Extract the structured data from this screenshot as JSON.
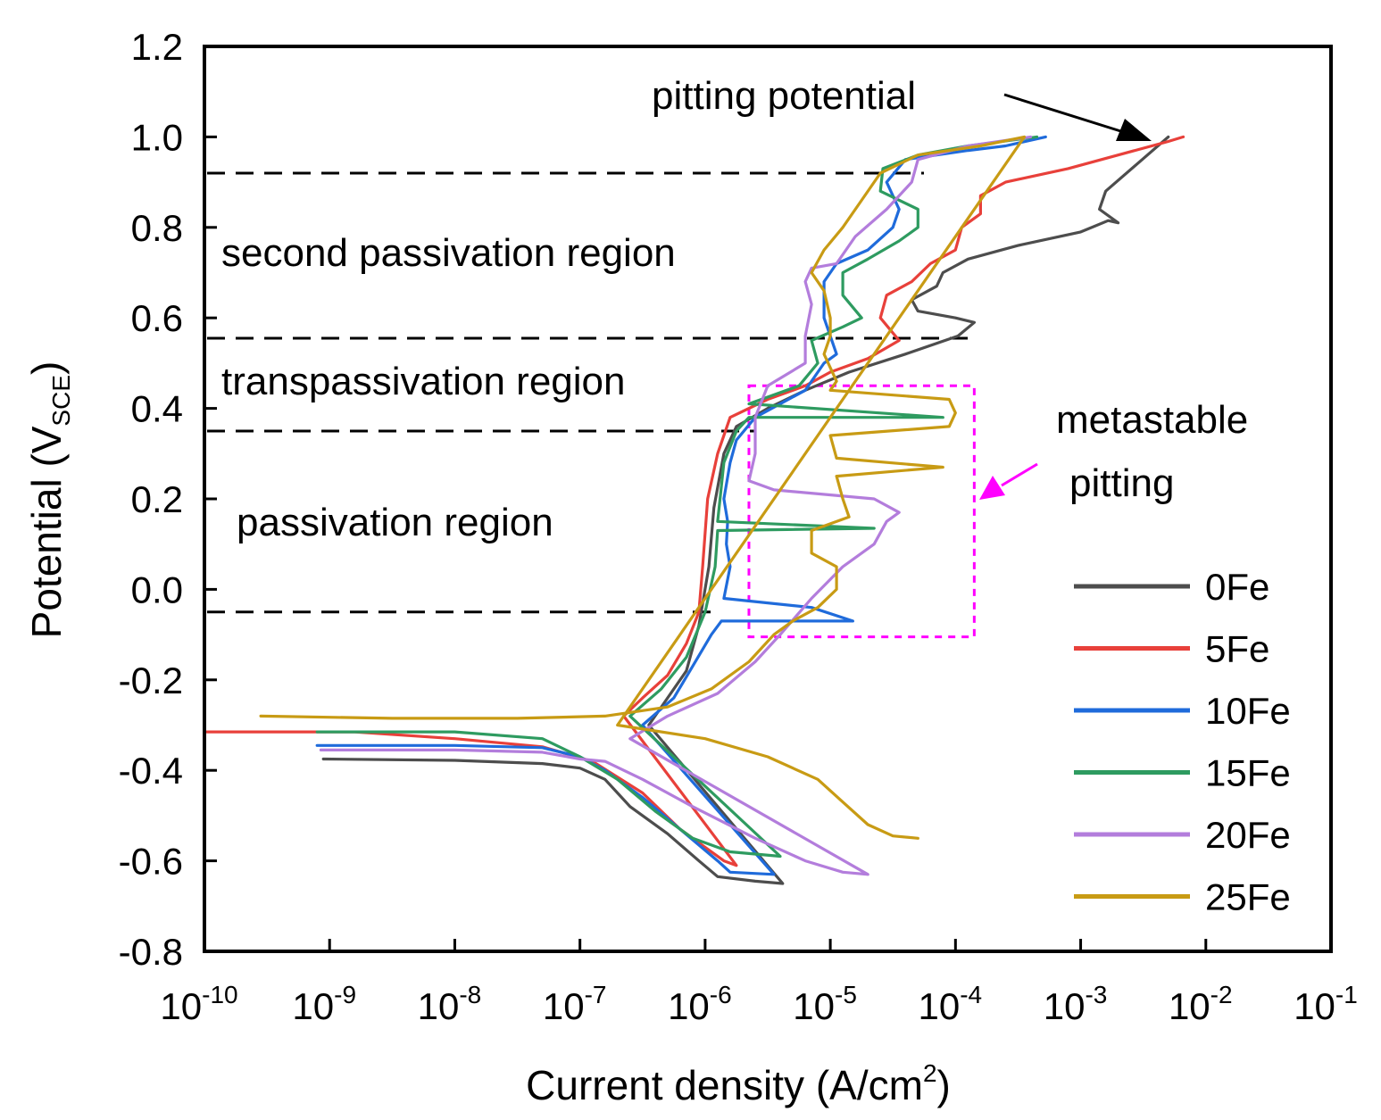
{
  "chart_data": {
    "type": "line",
    "title": "",
    "xlabel": {
      "main": "Current density (A/cm",
      "sup": "2",
      "tail": ")"
    },
    "ylabel": {
      "main": "Potential (V",
      "sub": "SCE",
      "tail": ")"
    },
    "xscale": "log",
    "xlim": [
      -10,
      -1
    ],
    "ylim": [
      -0.8,
      1.2
    ],
    "x_ticks": [
      {
        "base": "10",
        "exp": "-10",
        "value": -10
      },
      {
        "base": "10",
        "exp": "-9",
        "value": -9
      },
      {
        "base": "10",
        "exp": "-8",
        "value": -8
      },
      {
        "base": "10",
        "exp": "-7",
        "value": -7
      },
      {
        "base": "10",
        "exp": "-6",
        "value": -6
      },
      {
        "base": "10",
        "exp": "-5",
        "value": -5
      },
      {
        "base": "10",
        "exp": "-4",
        "value": -4
      },
      {
        "base": "10",
        "exp": "-3",
        "value": -3
      },
      {
        "base": "10",
        "exp": "-2",
        "value": -2
      },
      {
        "base": "10",
        "exp": "-1",
        "value": -1
      }
    ],
    "y_ticks": [
      {
        "label": "1.2",
        "value": 1.2
      },
      {
        "label": "1.0",
        "value": 1.0
      },
      {
        "label": "0.8",
        "value": 0.8
      },
      {
        "label": "0.6",
        "value": 0.6
      },
      {
        "label": "0.4",
        "value": 0.4
      },
      {
        "label": "0.2",
        "value": 0.2
      },
      {
        "label": "0.0",
        "value": 0.0
      },
      {
        "label": "-0.2",
        "value": -0.2
      },
      {
        "label": "-0.4",
        "value": -0.4
      },
      {
        "label": "-0.6",
        "value": -0.6
      },
      {
        "label": "-0.8",
        "value": -0.8
      }
    ],
    "legend_position": "bottom-right",
    "series": [
      {
        "name": "0Fe",
        "color": "#4d4d4d",
        "points": [
          [
            -9.05,
            -0.375
          ],
          [
            -8.0,
            -0.378
          ],
          [
            -7.3,
            -0.385
          ],
          [
            -7.0,
            -0.395
          ],
          [
            -6.8,
            -0.42
          ],
          [
            -6.6,
            -0.48
          ],
          [
            -6.3,
            -0.54
          ],
          [
            -6.05,
            -0.6
          ],
          [
            -5.9,
            -0.635
          ],
          [
            -5.6,
            -0.645
          ],
          [
            -5.38,
            -0.65
          ],
          [
            -6.45,
            -0.3
          ],
          [
            -6.3,
            -0.24
          ],
          [
            -6.15,
            -0.18
          ],
          [
            -6.05,
            -0.08
          ],
          [
            -5.97,
            0.05
          ],
          [
            -5.93,
            0.18
          ],
          [
            -5.85,
            0.3
          ],
          [
            -5.75,
            0.36
          ],
          [
            -5.5,
            0.4
          ],
          [
            -5.2,
            0.44
          ],
          [
            -4.85,
            0.48
          ],
          [
            -4.4,
            0.52
          ],
          [
            -3.98,
            0.56
          ],
          [
            -3.85,
            0.59
          ],
          [
            -4.0,
            0.6
          ],
          [
            -4.3,
            0.615
          ],
          [
            -4.35,
            0.64
          ],
          [
            -4.15,
            0.67
          ],
          [
            -4.1,
            0.7
          ],
          [
            -3.9,
            0.73
          ],
          [
            -3.5,
            0.76
          ],
          [
            -3.0,
            0.79
          ],
          [
            -2.78,
            0.815
          ],
          [
            -2.7,
            0.81
          ],
          [
            -2.85,
            0.84
          ],
          [
            -2.8,
            0.88
          ],
          [
            -2.55,
            0.94
          ],
          [
            -2.3,
            1.0
          ]
        ]
      },
      {
        "name": "5Fe",
        "color": "#e8403a",
        "points": [
          [
            -9.98,
            -0.315
          ],
          [
            -8.8,
            -0.315
          ],
          [
            -8.0,
            -0.33
          ],
          [
            -7.3,
            -0.348
          ],
          [
            -6.9,
            -0.38
          ],
          [
            -6.5,
            -0.45
          ],
          [
            -6.2,
            -0.53
          ],
          [
            -6.0,
            -0.57
          ],
          [
            -5.85,
            -0.6
          ],
          [
            -5.75,
            -0.61
          ],
          [
            -6.65,
            -0.28
          ],
          [
            -6.5,
            -0.24
          ],
          [
            -6.3,
            -0.19
          ],
          [
            -6.15,
            -0.12
          ],
          [
            -6.05,
            -0.05
          ],
          [
            -6.02,
            0.05
          ],
          [
            -5.98,
            0.2
          ],
          [
            -5.9,
            0.3
          ],
          [
            -5.8,
            0.38
          ],
          [
            -5.5,
            0.42
          ],
          [
            -5.2,
            0.45
          ],
          [
            -5.0,
            0.48
          ],
          [
            -4.7,
            0.51
          ],
          [
            -4.45,
            0.55
          ],
          [
            -4.6,
            0.6
          ],
          [
            -4.55,
            0.65
          ],
          [
            -4.35,
            0.68
          ],
          [
            -4.2,
            0.72
          ],
          [
            -4.0,
            0.75
          ],
          [
            -3.95,
            0.8
          ],
          [
            -3.8,
            0.83
          ],
          [
            -3.8,
            0.87
          ],
          [
            -3.6,
            0.9
          ],
          [
            -3.1,
            0.93
          ],
          [
            -2.7,
            0.96
          ],
          [
            -2.3,
            0.99
          ],
          [
            -2.18,
            1.0
          ]
        ]
      },
      {
        "name": "10Fe",
        "color": "#1f6bdb",
        "points": [
          [
            -9.1,
            -0.345
          ],
          [
            -8.0,
            -0.345
          ],
          [
            -7.3,
            -0.35
          ],
          [
            -7.0,
            -0.37
          ],
          [
            -6.8,
            -0.4
          ],
          [
            -6.5,
            -0.46
          ],
          [
            -6.2,
            -0.53
          ],
          [
            -5.9,
            -0.6
          ],
          [
            -5.8,
            -0.625
          ],
          [
            -5.45,
            -0.63
          ],
          [
            -6.5,
            -0.3
          ],
          [
            -6.25,
            -0.24
          ],
          [
            -6.1,
            -0.17
          ],
          [
            -5.95,
            -0.1
          ],
          [
            -5.87,
            -0.07
          ],
          [
            -5.0,
            -0.07
          ],
          [
            -4.82,
            -0.07
          ],
          [
            -5.15,
            -0.04
          ],
          [
            -5.85,
            -0.02
          ],
          [
            -5.8,
            0.05
          ],
          [
            -5.83,
            0.1
          ],
          [
            -5.82,
            0.15
          ],
          [
            -5.85,
            0.2
          ],
          [
            -5.8,
            0.28
          ],
          [
            -5.75,
            0.33
          ],
          [
            -5.6,
            0.38
          ],
          [
            -5.2,
            0.44
          ],
          [
            -5.05,
            0.5
          ],
          [
            -4.95,
            0.52
          ],
          [
            -5.05,
            0.6
          ],
          [
            -5.05,
            0.68
          ],
          [
            -4.95,
            0.72
          ],
          [
            -4.7,
            0.75
          ],
          [
            -4.5,
            0.8
          ],
          [
            -4.45,
            0.84
          ],
          [
            -4.55,
            0.9
          ],
          [
            -4.4,
            0.95
          ],
          [
            -3.9,
            0.97
          ],
          [
            -3.6,
            0.98
          ],
          [
            -3.28,
            1.0
          ]
        ]
      },
      {
        "name": "15Fe",
        "color": "#2e9b60",
        "points": [
          [
            -9.1,
            -0.315
          ],
          [
            -8.0,
            -0.315
          ],
          [
            -7.3,
            -0.33
          ],
          [
            -7.0,
            -0.37
          ],
          [
            -6.7,
            -0.42
          ],
          [
            -6.4,
            -0.49
          ],
          [
            -6.1,
            -0.55
          ],
          [
            -5.8,
            -0.58
          ],
          [
            -5.4,
            -0.59
          ],
          [
            -6.6,
            -0.28
          ],
          [
            -6.35,
            -0.22
          ],
          [
            -6.15,
            -0.15
          ],
          [
            -6.0,
            -0.05
          ],
          [
            -5.92,
            0.05
          ],
          [
            -5.9,
            0.13
          ],
          [
            -4.65,
            0.135
          ],
          [
            -5.9,
            0.15
          ],
          [
            -5.85,
            0.28
          ],
          [
            -5.75,
            0.35
          ],
          [
            -5.65,
            0.38
          ],
          [
            -4.1,
            0.38
          ],
          [
            -5.65,
            0.41
          ],
          [
            -5.25,
            0.45
          ],
          [
            -5.1,
            0.5
          ],
          [
            -5.15,
            0.55
          ],
          [
            -4.9,
            0.58
          ],
          [
            -4.75,
            0.6
          ],
          [
            -4.9,
            0.65
          ],
          [
            -4.9,
            0.7
          ],
          [
            -4.7,
            0.73
          ],
          [
            -4.45,
            0.77
          ],
          [
            -4.3,
            0.8
          ],
          [
            -4.3,
            0.84
          ],
          [
            -4.6,
            0.88
          ],
          [
            -4.58,
            0.93
          ],
          [
            -4.3,
            0.96
          ],
          [
            -3.9,
            0.98
          ],
          [
            -3.35,
            1.0
          ]
        ]
      },
      {
        "name": "20Fe",
        "color": "#b37ddc",
        "points": [
          [
            -9.07,
            -0.355
          ],
          [
            -8.0,
            -0.355
          ],
          [
            -7.3,
            -0.36
          ],
          [
            -7.0,
            -0.375
          ],
          [
            -6.8,
            -0.38
          ],
          [
            -6.5,
            -0.42
          ],
          [
            -6.1,
            -0.48
          ],
          [
            -5.6,
            -0.55
          ],
          [
            -5.2,
            -0.6
          ],
          [
            -4.9,
            -0.625
          ],
          [
            -4.7,
            -0.63
          ],
          [
            -6.6,
            -0.33
          ],
          [
            -6.3,
            -0.28
          ],
          [
            -5.9,
            -0.23
          ],
          [
            -5.6,
            -0.16
          ],
          [
            -5.4,
            -0.1
          ],
          [
            -5.15,
            -0.02
          ],
          [
            -4.9,
            0.05
          ],
          [
            -4.65,
            0.1
          ],
          [
            -4.55,
            0.15
          ],
          [
            -4.45,
            0.17
          ],
          [
            -4.65,
            0.2
          ],
          [
            -5.45,
            0.22
          ],
          [
            -5.65,
            0.24
          ],
          [
            -5.6,
            0.3
          ],
          [
            -5.6,
            0.38
          ],
          [
            -5.5,
            0.45
          ],
          [
            -5.2,
            0.5
          ],
          [
            -5.2,
            0.56
          ],
          [
            -5.15,
            0.63
          ],
          [
            -5.2,
            0.68
          ],
          [
            -5.15,
            0.71
          ],
          [
            -4.95,
            0.72
          ],
          [
            -4.8,
            0.78
          ],
          [
            -4.55,
            0.84
          ],
          [
            -4.35,
            0.9
          ],
          [
            -4.3,
            0.95
          ],
          [
            -3.9,
            0.98
          ],
          [
            -3.4,
            1.0
          ]
        ]
      },
      {
        "name": "25Fe",
        "color": "#c89b14",
        "points": [
          [
            -9.55,
            -0.28
          ],
          [
            -8.5,
            -0.285
          ],
          [
            -7.5,
            -0.285
          ],
          [
            -6.8,
            -0.28
          ],
          [
            -6.3,
            -0.26
          ],
          [
            -5.95,
            -0.22
          ],
          [
            -5.65,
            -0.16
          ],
          [
            -5.45,
            -0.1
          ],
          [
            -5.3,
            -0.07
          ],
          [
            -5.1,
            -0.04
          ],
          [
            -4.95,
            0.0
          ],
          [
            -4.95,
            0.05
          ],
          [
            -5.15,
            0.08
          ],
          [
            -5.15,
            0.13
          ],
          [
            -4.85,
            0.16
          ],
          [
            -4.9,
            0.2
          ],
          [
            -4.95,
            0.25
          ],
          [
            -4.1,
            0.27
          ],
          [
            -4.95,
            0.29
          ],
          [
            -5.0,
            0.34
          ],
          [
            -4.05,
            0.36
          ],
          [
            -4.0,
            0.39
          ],
          [
            -4.05,
            0.42
          ],
          [
            -5.0,
            0.44
          ],
          [
            -4.95,
            0.46
          ],
          [
            -5.05,
            0.52
          ],
          [
            -5.0,
            0.56
          ],
          [
            -5.0,
            0.6
          ],
          [
            -5.05,
            0.66
          ],
          [
            -5.15,
            0.7
          ],
          [
            -5.05,
            0.75
          ],
          [
            -4.9,
            0.8
          ],
          [
            -4.75,
            0.86
          ],
          [
            -4.6,
            0.92
          ],
          [
            -4.3,
            0.96
          ],
          [
            -3.8,
            0.98
          ],
          [
            -3.45,
            1.0
          ],
          [
            -6.7,
            -0.3
          ],
          [
            -6.0,
            -0.33
          ],
          [
            -5.5,
            -0.37
          ],
          [
            -5.1,
            -0.42
          ],
          [
            -4.9,
            -0.47
          ],
          [
            -4.7,
            -0.52
          ],
          [
            -4.5,
            -0.545
          ],
          [
            -4.3,
            -0.55
          ]
        ]
      }
    ],
    "annotations": {
      "pitting_potential": "pitting potential",
      "second_passivation": "second passivation region",
      "transpassivation": "transpassivation region",
      "passivation": "passivation region",
      "metastable_line1": "metastable",
      "metastable_line2": "pitting"
    },
    "region_boundaries": [
      0.92,
      0.555,
      0.35,
      -0.05
    ],
    "metastable_box": {
      "x_range": [
        -5.65,
        -3.85
      ],
      "y_range": [
        -0.105,
        0.45
      ],
      "color": "#ff00ff"
    },
    "pitting_arrow_color": "#000000"
  }
}
